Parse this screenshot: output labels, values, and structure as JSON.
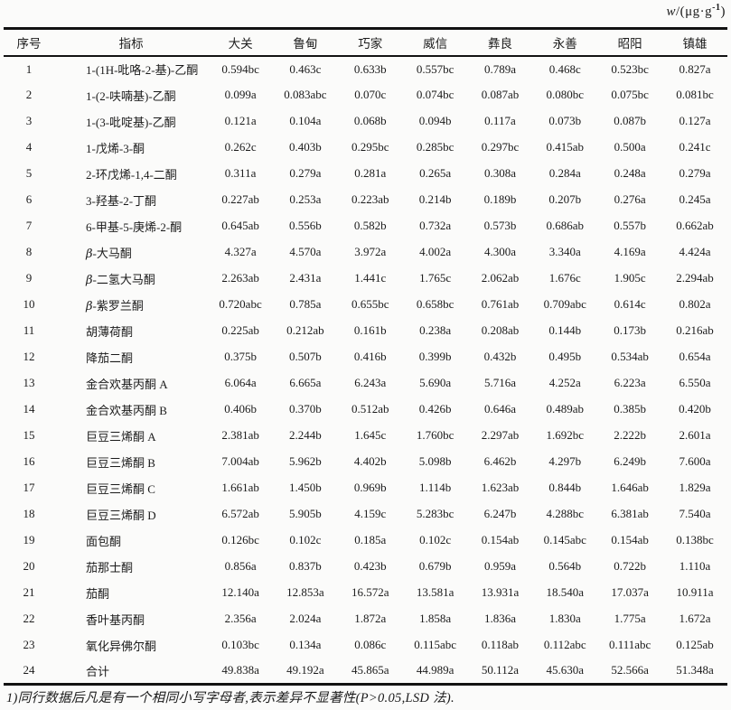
{
  "unit": {
    "w": "w",
    "rest": "/(μg·g",
    "sup": "-1",
    "close": ")"
  },
  "columns": [
    "序号",
    "指标",
    "大关",
    "鲁甸",
    "巧家",
    "威信",
    "彝良",
    "永善",
    "昭阳",
    "镇雄"
  ],
  "rows": [
    {
      "no": "1",
      "indicator": "1-(1H-吡咯-2-基)-乙酮",
      "values": [
        "0.594bc",
        "0.463c",
        "0.633b",
        "0.557bc",
        "0.789a",
        "0.468c",
        "0.523bc",
        "0.827a"
      ]
    },
    {
      "no": "2",
      "indicator": "1-(2-呋喃基)-乙酮",
      "values": [
        "0.099a",
        "0.083abc",
        "0.070c",
        "0.074bc",
        "0.087ab",
        "0.080bc",
        "0.075bc",
        "0.081bc"
      ]
    },
    {
      "no": "3",
      "indicator": "1-(3-吡啶基)-乙酮",
      "values": [
        "0.121a",
        "0.104a",
        "0.068b",
        "0.094b",
        "0.117a",
        "0.073b",
        "0.087b",
        "0.127a"
      ]
    },
    {
      "no": "4",
      "indicator": "1-戊烯-3-酮",
      "values": [
        "0.262c",
        "0.403b",
        "0.295bc",
        "0.285bc",
        "0.297bc",
        "0.415ab",
        "0.500a",
        "0.241c"
      ]
    },
    {
      "no": "5",
      "indicator": "2-环戊烯-1,4-二酮",
      "values": [
        "0.311a",
        "0.279a",
        "0.281a",
        "0.265a",
        "0.308a",
        "0.284a",
        "0.248a",
        "0.279a"
      ]
    },
    {
      "no": "6",
      "indicator": "3-羟基-2-丁酮",
      "values": [
        "0.227ab",
        "0.253a",
        "0.223ab",
        "0.214b",
        "0.189b",
        "0.207b",
        "0.276a",
        "0.245a"
      ]
    },
    {
      "no": "7",
      "indicator": "6-甲基-5-庚烯-2-酮",
      "values": [
        "0.645ab",
        "0.556b",
        "0.582b",
        "0.732a",
        "0.573b",
        "0.686ab",
        "0.557b",
        "0.662ab"
      ]
    },
    {
      "no": "8",
      "indicator": "β-大马酮",
      "values": [
        "4.327a",
        "4.570a",
        "3.972a",
        "4.002a",
        "4.300a",
        "3.340a",
        "4.169a",
        "4.424a"
      ]
    },
    {
      "no": "9",
      "indicator": "β-二氢大马酮",
      "values": [
        "2.263ab",
        "2.431a",
        "1.441c",
        "1.765c",
        "2.062ab",
        "1.676c",
        "1.905c",
        "2.294ab"
      ]
    },
    {
      "no": "10",
      "indicator": "β-紫罗兰酮",
      "values": [
        "0.720abc",
        "0.785a",
        "0.655bc",
        "0.658bc",
        "0.761ab",
        "0.709abc",
        "0.614c",
        "0.802a"
      ]
    },
    {
      "no": "11",
      "indicator": "胡薄荷酮",
      "values": [
        "0.225ab",
        "0.212ab",
        "0.161b",
        "0.238a",
        "0.208ab",
        "0.144b",
        "0.173b",
        "0.216ab"
      ]
    },
    {
      "no": "12",
      "indicator": "降茄二酮",
      "values": [
        "0.375b",
        "0.507b",
        "0.416b",
        "0.399b",
        "0.432b",
        "0.495b",
        "0.534ab",
        "0.654a"
      ]
    },
    {
      "no": "13",
      "indicator": "金合欢基丙酮 A",
      "values": [
        "6.064a",
        "6.665a",
        "6.243a",
        "5.690a",
        "5.716a",
        "4.252a",
        "6.223a",
        "6.550a"
      ]
    },
    {
      "no": "14",
      "indicator": "金合欢基丙酮 B",
      "values": [
        "0.406b",
        "0.370b",
        "0.512ab",
        "0.426b",
        "0.646a",
        "0.489ab",
        "0.385b",
        "0.420b"
      ]
    },
    {
      "no": "15",
      "indicator": "巨豆三烯酮 A",
      "values": [
        "2.381ab",
        "2.244b",
        "1.645c",
        "1.760bc",
        "2.297ab",
        "1.692bc",
        "2.222b",
        "2.601a"
      ]
    },
    {
      "no": "16",
      "indicator": "巨豆三烯酮 B",
      "values": [
        "7.004ab",
        "5.962b",
        "4.402b",
        "5.098b",
        "6.462b",
        "4.297b",
        "6.249b",
        "7.600a"
      ]
    },
    {
      "no": "17",
      "indicator": "巨豆三烯酮 C",
      "values": [
        "1.661ab",
        "1.450b",
        "0.969b",
        "1.114b",
        "1.623ab",
        "0.844b",
        "1.646ab",
        "1.829a"
      ]
    },
    {
      "no": "18",
      "indicator": "巨豆三烯酮 D",
      "values": [
        "6.572ab",
        "5.905b",
        "4.159c",
        "5.283bc",
        "6.247b",
        "4.288bc",
        "6.381ab",
        "7.540a"
      ]
    },
    {
      "no": "19",
      "indicator": "面包酮",
      "values": [
        "0.126bc",
        "0.102c",
        "0.185a",
        "0.102c",
        "0.154ab",
        "0.145abc",
        "0.154ab",
        "0.138bc"
      ]
    },
    {
      "no": "20",
      "indicator": "茄那士酮",
      "values": [
        "0.856a",
        "0.837b",
        "0.423b",
        "0.679b",
        "0.959a",
        "0.564b",
        "0.722b",
        "1.110a"
      ]
    },
    {
      "no": "21",
      "indicator": "茄酮",
      "values": [
        "12.140a",
        "12.853a",
        "16.572a",
        "13.581a",
        "13.931a",
        "18.540a",
        "17.037a",
        "10.911a"
      ]
    },
    {
      "no": "22",
      "indicator": "香叶基丙酮",
      "values": [
        "2.356a",
        "2.024a",
        "1.872a",
        "1.858a",
        "1.836a",
        "1.830a",
        "1.775a",
        "1.672a"
      ]
    },
    {
      "no": "23",
      "indicator": "氧化异佛尔酮",
      "values": [
        "0.103bc",
        "0.134a",
        "0.086c",
        "0.115abc",
        "0.118ab",
        "0.112abc",
        "0.111abc",
        "0.125ab"
      ]
    },
    {
      "no": "24",
      "indicator": "合计",
      "values": [
        "49.838a",
        "49.192a",
        "45.865a",
        "44.989a",
        "50.112a",
        "45.630a",
        "52.566a",
        "51.348a"
      ]
    }
  ],
  "footnote": {
    "prefix": "1)同行数据后凡是有一个相同小写字母者,表示差异不显著性(",
    "p": "P",
    "suffix": ">0.05,LSD 法)."
  }
}
